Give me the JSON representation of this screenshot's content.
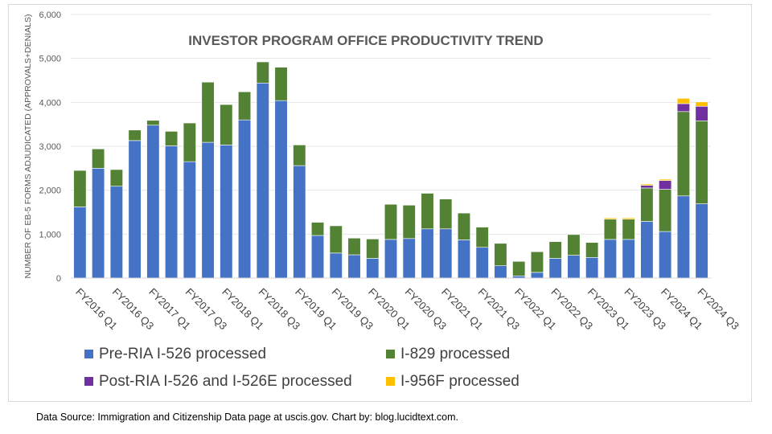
{
  "chart_data": {
    "type": "bar",
    "stacked": true,
    "title": "INVESTOR PROGRAM OFFICE PRODUCTIVITY TREND",
    "xlabel": "",
    "ylabel": "NUMBER OF EB-5 FORMS ADJUDICATED (APPROVALS+DENIALS)",
    "ylim": [
      0,
      6000
    ],
    "yticks": [
      "0",
      "1,000",
      "2,000",
      "3,000",
      "4,000",
      "5,000",
      "6,000"
    ],
    "ytick_values": [
      0,
      1000,
      2000,
      3000,
      4000,
      5000,
      6000
    ],
    "grid": true,
    "legend_position": "bottom",
    "categories": [
      "FY2016 Q1",
      "FY2016 Q2",
      "FY2016 Q3",
      "FY2016 Q4",
      "FY2017 Q1",
      "FY2017 Q2",
      "FY2017 Q3",
      "FY2017 Q4",
      "FY2018 Q1",
      "FY2018 Q2",
      "FY2018 Q3",
      "FY2018 Q4",
      "FY2019 Q1",
      "FY2019 Q2",
      "FY2019 Q3",
      "FY2019 Q4",
      "FY2020 Q1",
      "FY2020 Q2",
      "FY2020 Q3",
      "FY2020 Q4",
      "FY2021 Q1",
      "FY2021 Q2",
      "FY2021 Q3",
      "FY2021 Q4",
      "FY2022 Q1",
      "FY2022 Q2",
      "FY2022 Q3",
      "FY2022 Q4",
      "FY2023 Q1",
      "FY2023 Q2",
      "FY2023 Q3",
      "FY2023 Q4",
      "FY2024 Q1",
      "FY2024 Q2",
      "FY2024 Q3"
    ],
    "xtick_labels": [
      "FY2016 Q1",
      "FY2016 Q3",
      "FY2017 Q1",
      "FY2017 Q3",
      "FY2018 Q1",
      "FY2018 Q3",
      "FY2019 Q1",
      "FY2019 Q3",
      "FY2020 Q1",
      "FY2020 Q3",
      "FY2021 Q1",
      "FY2021 Q3",
      "FY2022 Q1",
      "FY2022 Q3",
      "FY2023 Q1",
      "FY2023 Q3",
      "FY2024 Q1",
      "FY2024 Q3"
    ],
    "series": [
      {
        "name": "Pre-RIA I-526 processed",
        "color": "#4472c4",
        "values": [
          1620,
          2500,
          2090,
          3130,
          3480,
          3010,
          2650,
          3090,
          3030,
          3600,
          4440,
          4040,
          2560,
          970,
          570,
          530,
          450,
          880,
          900,
          1120,
          1120,
          870,
          700,
          280,
          50,
          130,
          450,
          520,
          470,
          880,
          880,
          1290,
          1060,
          1870,
          1690
        ]
      },
      {
        "name": "I-829 processed",
        "color": "#548235",
        "values": [
          830,
          440,
          380,
          240,
          110,
          330,
          880,
          1370,
          920,
          640,
          480,
          760,
          470,
          300,
          620,
          380,
          440,
          800,
          760,
          810,
          680,
          610,
          460,
          510,
          330,
          470,
          380,
          470,
          340,
          460,
          460,
          760,
          960,
          1920,
          1890
        ]
      },
      {
        "name": "Post-RIA I-526 and I-526E processed",
        "color": "#7030a0",
        "values": [
          0,
          0,
          0,
          0,
          0,
          0,
          0,
          0,
          0,
          0,
          0,
          0,
          0,
          0,
          0,
          0,
          0,
          0,
          0,
          0,
          0,
          0,
          0,
          0,
          0,
          0,
          0,
          0,
          0,
          0,
          0,
          60,
          200,
          180,
          330
        ]
      },
      {
        "name": "I-956F processed",
        "color": "#ffc000",
        "values": [
          0,
          0,
          0,
          0,
          0,
          0,
          0,
          0,
          0,
          0,
          0,
          0,
          0,
          0,
          0,
          0,
          0,
          0,
          0,
          0,
          0,
          0,
          0,
          0,
          0,
          0,
          0,
          0,
          0,
          30,
          30,
          30,
          30,
          120,
          100
        ]
      }
    ]
  },
  "footer": "Data Source: Immigration and Citizenship Data page at uscis.gov. Chart by: blog.lucidtext.com."
}
